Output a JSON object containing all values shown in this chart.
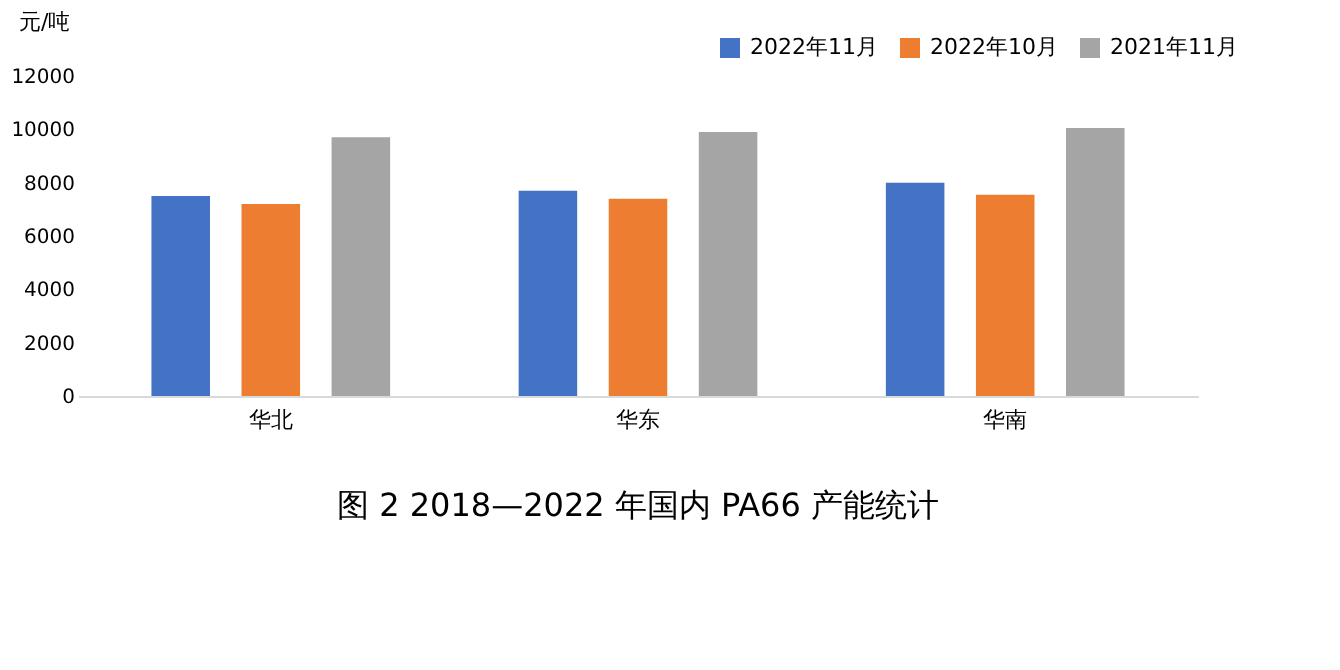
{
  "chart_data": {
    "type": "bar",
    "title": "图 2  2018—2022 年国内 PA66 产能统计",
    "ylabel": "元/吨",
    "categories": [
      "华北",
      "华东",
      "华南"
    ],
    "series": [
      {
        "name": "2022年11月",
        "color": "#4472c4",
        "values": [
          7500,
          7700,
          8000
        ]
      },
      {
        "name": "2022年10月",
        "color": "#ed7d31",
        "values": [
          7200,
          7400,
          7550
        ]
      },
      {
        "name": "2021年11月",
        "color": "#a5a5a5",
        "values": [
          9700,
          9900,
          10050
        ]
      }
    ],
    "ylim": [
      0,
      12000
    ],
    "yticks": [
      0,
      2000,
      4000,
      6000,
      8000,
      10000,
      12000
    ],
    "grid": false,
    "legend": "top right"
  }
}
